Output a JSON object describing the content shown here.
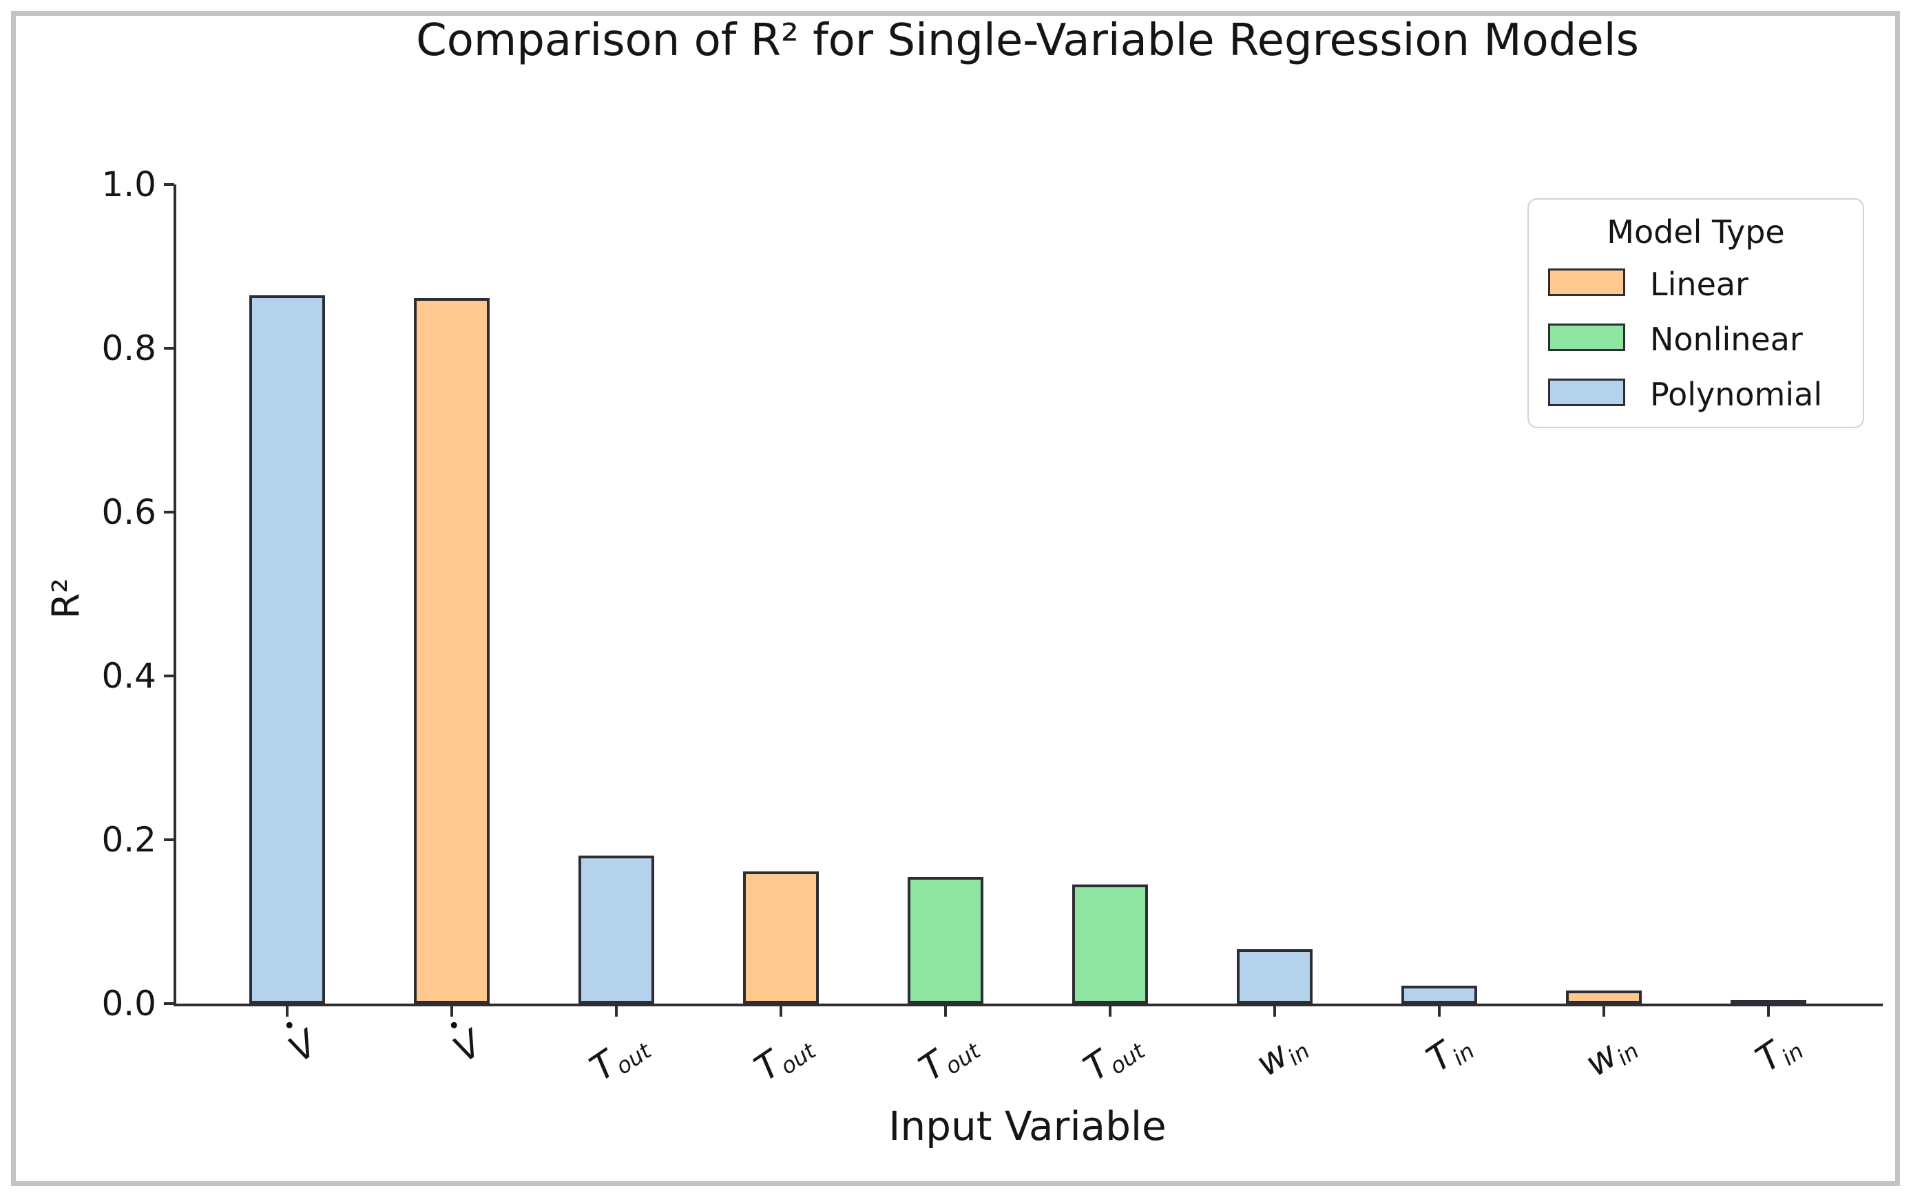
{
  "figure": {
    "frame_color": "#c3c3c3",
    "background": "#ffffff"
  },
  "chart_data": {
    "type": "bar",
    "title": "Comparison of R² for Single-Variable Regression Models",
    "xlabel": "Input Variable",
    "ylabel": "R²",
    "ylim": [
      0.0,
      1.0
    ],
    "yticks": [
      "0.0",
      "0.2",
      "0.4",
      "0.6",
      "0.8",
      "1.0"
    ],
    "grid": false,
    "legend": {
      "title": "Model Type",
      "position": "upper right",
      "entries": [
        {
          "label": "Linear",
          "color": "#fec88e"
        },
        {
          "label": "Nonlinear",
          "color": "#8ee5a1"
        },
        {
          "label": "Polynomial",
          "color": "#b4d2ec"
        }
      ]
    },
    "colors": {
      "Linear": "#fec88e",
      "Nonlinear": "#8ee5a1",
      "Polynomial": "#b4d2ec",
      "bar_edge": "#2d2d35"
    },
    "categories": [
      "V̇",
      "V̇",
      "T_out",
      "T_out",
      "T_out",
      "T_out",
      "w_in",
      "T_in",
      "w_in",
      "T_in"
    ],
    "bars": [
      {
        "base": "V̇",
        "sub": "",
        "model": "Polynomial",
        "value": 0.865
      },
      {
        "base": "V̇",
        "sub": "",
        "model": "Linear",
        "value": 0.861
      },
      {
        "base": "T",
        "sub": "out",
        "model": "Polynomial",
        "value": 0.181
      },
      {
        "base": "T",
        "sub": "out",
        "model": "Linear",
        "value": 0.161
      },
      {
        "base": "T",
        "sub": "out",
        "model": "Nonlinear",
        "value": 0.155
      },
      {
        "base": "T",
        "sub": "out",
        "model": "Nonlinear",
        "value": 0.145
      },
      {
        "base": "w",
        "sub": "in",
        "model": "Polynomial",
        "value": 0.066
      },
      {
        "base": "T",
        "sub": "in",
        "model": "Polynomial",
        "value": 0.022
      },
      {
        "base": "w",
        "sub": "in",
        "model": "Linear",
        "value": 0.016
      },
      {
        "base": "T",
        "sub": "in",
        "model": "Linear",
        "value": 0.002
      }
    ]
  }
}
